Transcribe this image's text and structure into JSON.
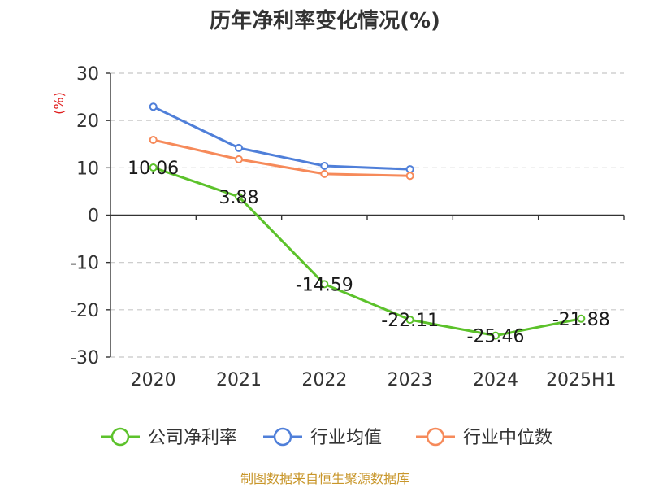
{
  "chart_data": {
    "type": "line",
    "title": "历年净利率变化情况(%)",
    "ylabel": "(%)",
    "categories": [
      "2020",
      "2021",
      "2022",
      "2023",
      "2024",
      "2025H1"
    ],
    "ylim": [
      -30,
      30
    ],
    "yticks": [
      30,
      20,
      10,
      0,
      -10,
      -20,
      -30
    ],
    "grid": true,
    "legend_position": "bottom",
    "series": [
      {
        "name": "公司净利率",
        "color": "#5cc22b",
        "values": [
          10.06,
          3.88,
          -14.59,
          -22.11,
          -25.46,
          -21.88
        ],
        "labels": [
          "10.06",
          "3.88",
          "-14.59",
          "-22.11",
          "-25.46",
          "-21.88"
        ]
      },
      {
        "name": "行业均值",
        "color": "#4f7fd9",
        "values": [
          22.9,
          14.2,
          10.4,
          9.7,
          null,
          null
        ]
      },
      {
        "name": "行业中位数",
        "color": "#f68a5a",
        "values": [
          15.9,
          11.8,
          8.7,
          8.3,
          null,
          null
        ]
      }
    ],
    "source": "制图数据来自恒生聚源数据库"
  }
}
